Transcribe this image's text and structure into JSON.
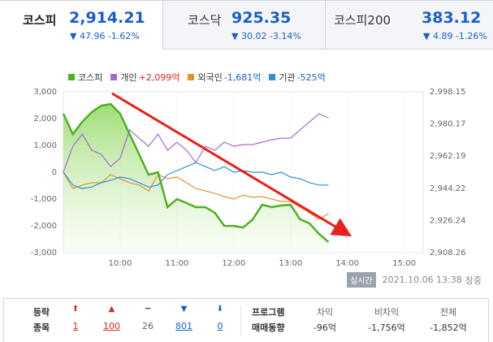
{
  "tabs": [
    {
      "name": "코스피",
      "value": "2,914.21",
      "change": "▼ 47.96 -1.62%"
    },
    {
      "name": "코스닥",
      "value": "925.35",
      "change": "▼ 30.02 -3.14%"
    },
    {
      "name": "코스피200",
      "value": "383.12",
      "change": "▼ 4.89 -1.26%"
    }
  ],
  "chart_data": {
    "type": "line",
    "x": [
      540,
      550,
      560,
      570,
      580,
      590,
      600,
      610,
      620,
      630,
      640,
      650,
      660,
      670,
      680,
      690,
      700,
      710,
      720,
      730,
      740,
      750,
      760,
      770,
      780,
      790,
      800,
      810,
      820
    ],
    "xlim": [
      540,
      920
    ],
    "xticks": [
      {
        "value": 600,
        "label": "10:00"
      },
      {
        "value": 660,
        "label": "11:00"
      },
      {
        "value": 720,
        "label": "12:00"
      },
      {
        "value": 780,
        "label": "13:00"
      },
      {
        "value": 840,
        "label": "14:00"
      },
      {
        "value": 900,
        "label": "15:00"
      }
    ],
    "ylim": [
      -3000,
      3000
    ],
    "yticks": [
      {
        "value": 3000,
        "label": "3,000"
      },
      {
        "value": 2000,
        "label": "2,000"
      },
      {
        "value": 1000,
        "label": "1,000"
      },
      0,
      {
        "value": -1000,
        "label": "-1,000"
      },
      {
        "value": -2000,
        "label": "-2,000"
      },
      {
        "value": -3000,
        "label": "-3,000"
      }
    ],
    "y2lim": [
      2908.26,
      2998.15
    ],
    "y2ticks": [
      {
        "value": 2998.15,
        "label": "2,998.15"
      },
      {
        "value": 2980.17,
        "label": "2,980.17"
      },
      {
        "value": 2962.19,
        "label": "2,962.19"
      },
      {
        "value": 2944.22,
        "label": "2,944.22"
      },
      {
        "value": 2926.24,
        "label": "2,926.24"
      },
      {
        "value": 2908.26,
        "label": "2,908.26"
      }
    ],
    "grid": true,
    "series": [
      {
        "name": "코스피",
        "color": "#4fb01e",
        "axis": "y2",
        "fill": true,
        "values": [
          2985.9,
          2974.5,
          2981.4,
          2986.8,
          2990.4,
          2991.3,
          2985.9,
          2974.5,
          2963.2,
          2951.8,
          2953.2,
          2933.7,
          2938.2,
          2936.0,
          2933.7,
          2933.7,
          2930.5,
          2923.2,
          2923.2,
          2922.3,
          2926.9,
          2935.0,
          2933.7,
          2934.6,
          2935.0,
          2926.9,
          2924.6,
          2918.7,
          2914.21
        ]
      },
      {
        "name": "개인",
        "legend_value": "+2,099억",
        "legend_value_color": "#d9261c",
        "color": "#a66bd3",
        "values": [
          0,
          970,
          1420,
          820,
          670,
          210,
          520,
          1580,
          1270,
          970,
          1420,
          820,
          1120,
          820,
          360,
          970,
          820,
          1120,
          970,
          1030,
          1030,
          1120,
          1210,
          1270,
          1270,
          1580,
          1880,
          2180,
          2030
        ]
      },
      {
        "name": "외국인",
        "legend_value": "-1,681억",
        "legend_value_color": "#1a5ecb",
        "color": "#e8922e",
        "values": [
          0,
          -610,
          -480,
          -390,
          -390,
          -90,
          -240,
          -390,
          -480,
          -700,
          -90,
          -240,
          -180,
          -390,
          -610,
          -700,
          -790,
          -910,
          -1000,
          -850,
          -940,
          -910,
          -1000,
          -1090,
          -1090,
          -1300,
          -1520,
          -1760,
          -1550
        ]
      },
      {
        "name": "기관",
        "legend_value": "-525억",
        "legend_value_color": "#1a5ecb",
        "color": "#2f8fe0",
        "values": [
          0,
          -480,
          -610,
          -550,
          -390,
          -300,
          -180,
          -240,
          -390,
          -550,
          -480,
          -90,
          60,
          210,
          360,
          210,
          60,
          210,
          0,
          60,
          0,
          0,
          -90,
          0,
          -180,
          -240,
          -390,
          -480,
          -480
        ]
      }
    ]
  },
  "status": {
    "badge": "실시간",
    "timestamp": "2021.10.06 13:38",
    "state": "장중"
  },
  "breadth": {
    "label_1": "등락",
    "label_2": "종목",
    "items": [
      {
        "icon": "⬆",
        "count": "1",
        "color": "#d9261c"
      },
      {
        "icon": "▲",
        "count": "100",
        "color": "#d9261c"
      },
      {
        "icon": "━",
        "count": "26",
        "color": "#666666"
      },
      {
        "icon": "▼",
        "count": "801",
        "color": "#1a5ecb"
      },
      {
        "icon": "⬇",
        "count": "0",
        "color": "#1a5ecb"
      }
    ]
  },
  "program": {
    "label_1": "프로그램",
    "label_2": "매매동향",
    "items": [
      {
        "label": "차익",
        "value": "-96억"
      },
      {
        "label": "비차익",
        "value": "-1,756억"
      },
      {
        "label": "전체",
        "value": "-1,852억"
      }
    ]
  }
}
